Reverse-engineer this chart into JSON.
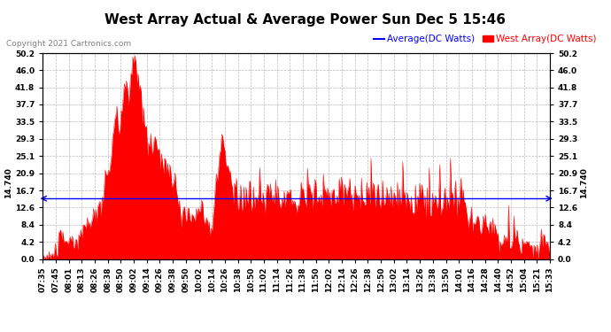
{
  "title": "West Array Actual & Average Power Sun Dec 5 15:46",
  "copyright": "Copyright 2021 Cartronics.com",
  "average_value": 14.74,
  "average_label": "14.740",
  "legend_avg": "Average(DC Watts)",
  "legend_west": "West Array(DC Watts)",
  "avg_color": "blue",
  "west_color": "red",
  "ylim": [
    0.0,
    50.2
  ],
  "yticks": [
    0.0,
    4.2,
    8.4,
    12.6,
    16.7,
    20.9,
    25.1,
    29.3,
    33.5,
    37.7,
    41.8,
    46.0,
    50.2
  ],
  "background_color": "white",
  "grid_color": "#aaaaaa",
  "title_fontsize": 11,
  "tick_fontsize": 6.5,
  "legend_fontsize": 7.5,
  "copyright_fontsize": 6.5,
  "xtick_labels": [
    "07:35",
    "07:45",
    "08:01",
    "08:13",
    "08:26",
    "08:38",
    "08:50",
    "09:02",
    "09:14",
    "09:26",
    "09:38",
    "09:50",
    "10:02",
    "10:14",
    "10:26",
    "10:38",
    "10:50",
    "11:02",
    "11:14",
    "11:26",
    "11:38",
    "11:50",
    "12:02",
    "12:14",
    "12:26",
    "12:38",
    "12:50",
    "13:02",
    "13:14",
    "13:26",
    "13:38",
    "13:50",
    "14:01",
    "14:16",
    "14:28",
    "14:40",
    "14:52",
    "15:04",
    "15:21",
    "15:33"
  ]
}
